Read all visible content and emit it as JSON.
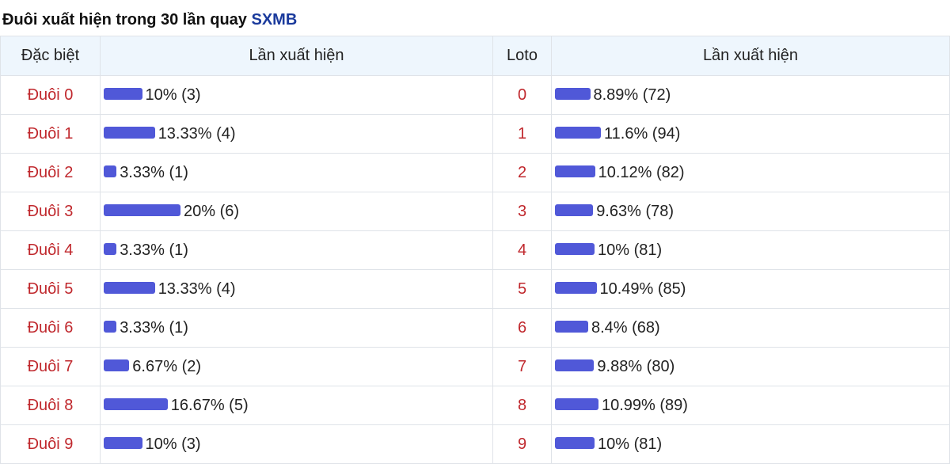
{
  "title": {
    "text": "Đuôi xuất hiện trong 30 lần quay",
    "brand": "SXMB"
  },
  "colors": {
    "bar": "#5058d8",
    "label": "#c0282d",
    "header_bg": "#eef6fd",
    "brand": "#1a3a9c"
  },
  "headers": {
    "special": "Đặc biệt",
    "freq1": "Lần xuất hiện",
    "loto": "Loto",
    "freq2": "Lần xuất hiện"
  },
  "rows": [
    {
      "special": "Đuôi 0",
      "s_pct": 10,
      "s_text": "10% (3)",
      "loto": "0",
      "l_pct": 8.89,
      "l_text": "8.89% (72)"
    },
    {
      "special": "Đuôi 1",
      "s_pct": 13.33,
      "s_text": "13.33% (4)",
      "loto": "1",
      "l_pct": 11.6,
      "l_text": "11.6% (94)"
    },
    {
      "special": "Đuôi 2",
      "s_pct": 3.33,
      "s_text": "3.33% (1)",
      "loto": "2",
      "l_pct": 10.12,
      "l_text": "10.12% (82)"
    },
    {
      "special": "Đuôi 3",
      "s_pct": 20,
      "s_text": "20% (6)",
      "loto": "3",
      "l_pct": 9.63,
      "l_text": "9.63% (78)"
    },
    {
      "special": "Đuôi 4",
      "s_pct": 3.33,
      "s_text": "3.33% (1)",
      "loto": "4",
      "l_pct": 10,
      "l_text": "10% (81)"
    },
    {
      "special": "Đuôi 5",
      "s_pct": 13.33,
      "s_text": "13.33% (4)",
      "loto": "5",
      "l_pct": 10.49,
      "l_text": "10.49% (85)"
    },
    {
      "special": "Đuôi 6",
      "s_pct": 3.33,
      "s_text": "3.33% (1)",
      "loto": "6",
      "l_pct": 8.4,
      "l_text": "8.4% (68)"
    },
    {
      "special": "Đuôi 7",
      "s_pct": 6.67,
      "s_text": "6.67% (2)",
      "loto": "7",
      "l_pct": 9.88,
      "l_text": "9.88% (80)"
    },
    {
      "special": "Đuôi 8",
      "s_pct": 16.67,
      "s_text": "16.67% (5)",
      "loto": "8",
      "l_pct": 10.99,
      "l_text": "10.99% (89)"
    },
    {
      "special": "Đuôi 9",
      "s_pct": 10,
      "s_text": "10% (3)",
      "loto": "9",
      "l_pct": 10,
      "l_text": "10% (81)"
    }
  ]
}
